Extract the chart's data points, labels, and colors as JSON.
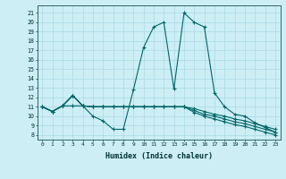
{
  "title": "",
  "xlabel": "Humidex (Indice chaleur)",
  "ylabel": "",
  "bg_color": "#cdeef5",
  "line_color": "#006666",
  "grid_color": "#b0dde8",
  "x_ticks": [
    0,
    1,
    2,
    3,
    4,
    5,
    6,
    7,
    8,
    9,
    10,
    11,
    12,
    13,
    14,
    15,
    16,
    17,
    18,
    19,
    20,
    21,
    22,
    23
  ],
  "y_ticks": [
    8,
    9,
    10,
    11,
    12,
    13,
    14,
    15,
    16,
    17,
    18,
    19,
    20,
    21
  ],
  "ylim": [
    7.5,
    21.8
  ],
  "xlim": [
    -0.5,
    23.5
  ],
  "series": [
    [
      11.0,
      10.5,
      11.1,
      12.2,
      11.1,
      10.0,
      9.5,
      8.6,
      8.6,
      12.8,
      17.3,
      19.5,
      20.0,
      12.9,
      21.0,
      20.0,
      19.5,
      12.5,
      11.0,
      10.2,
      10.0,
      9.3,
      8.8,
      8.3
    ],
    [
      11.0,
      10.5,
      11.1,
      12.2,
      11.1,
      11.0,
      11.0,
      11.0,
      11.0,
      11.0,
      11.0,
      11.0,
      11.0,
      11.0,
      11.0,
      10.8,
      10.5,
      10.2,
      10.0,
      9.7,
      9.5,
      9.2,
      8.9,
      8.6
    ],
    [
      11.0,
      10.5,
      11.1,
      11.1,
      11.1,
      11.0,
      11.0,
      11.0,
      11.0,
      11.0,
      11.0,
      11.0,
      11.0,
      11.0,
      11.0,
      10.6,
      10.2,
      10.0,
      9.7,
      9.4,
      9.2,
      8.9,
      8.6,
      8.3
    ],
    [
      11.0,
      10.5,
      11.1,
      12.2,
      11.1,
      11.0,
      11.0,
      11.0,
      11.0,
      11.0,
      11.0,
      11.0,
      11.0,
      11.0,
      11.0,
      10.4,
      10.0,
      9.7,
      9.4,
      9.1,
      8.9,
      8.6,
      8.3,
      8.0
    ]
  ]
}
